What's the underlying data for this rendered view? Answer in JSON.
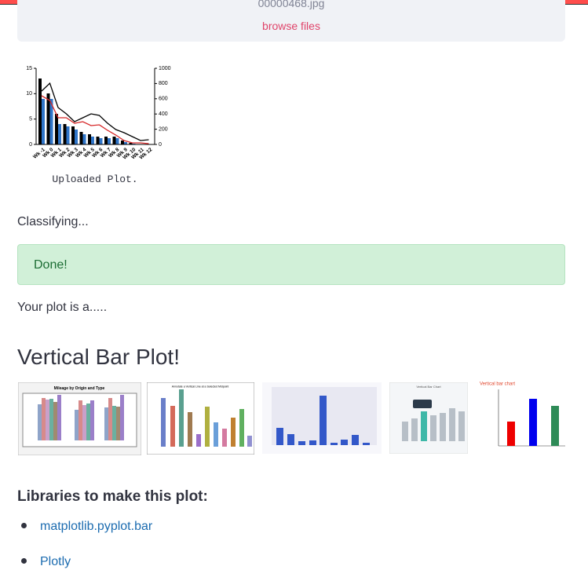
{
  "uploader": {
    "filename": "00000468.jpg",
    "browse": "browse files"
  },
  "uploaded_plot": {
    "yticks": [
      0,
      5,
      10,
      15
    ],
    "y2ticks": [
      0,
      200,
      400,
      600,
      800,
      1000
    ],
    "xlabels": [
      "Wk -1",
      "Wk 0",
      "Wk 1",
      "Wk 2",
      "Wk 3",
      "Wk 4",
      "Wk 5",
      "Wk 6",
      "Wk 7",
      "Wk 8",
      "Wk 9",
      "Wk 10",
      "Wk 11",
      "Wk 12"
    ],
    "caption": "Uploaded Plot."
  },
  "status": "Classifying...",
  "alert": "Done!",
  "result_intro": "Your plot is a.....",
  "result": "Vertical Bar Plot!",
  "gallery": {
    "thumb1_title": "Mileage by Origin and Type",
    "thumb2_title": "Annotate a Vertical Line at a Selected Midpoint",
    "thumb4_title": "Vertical Bar Chart",
    "thumb5_title": "Vertical bar chart"
  },
  "libraries": {
    "heading": "Libraries to make this plot:",
    "items": [
      "matplotlib.pyplot.bar",
      "Plotly"
    ]
  }
}
